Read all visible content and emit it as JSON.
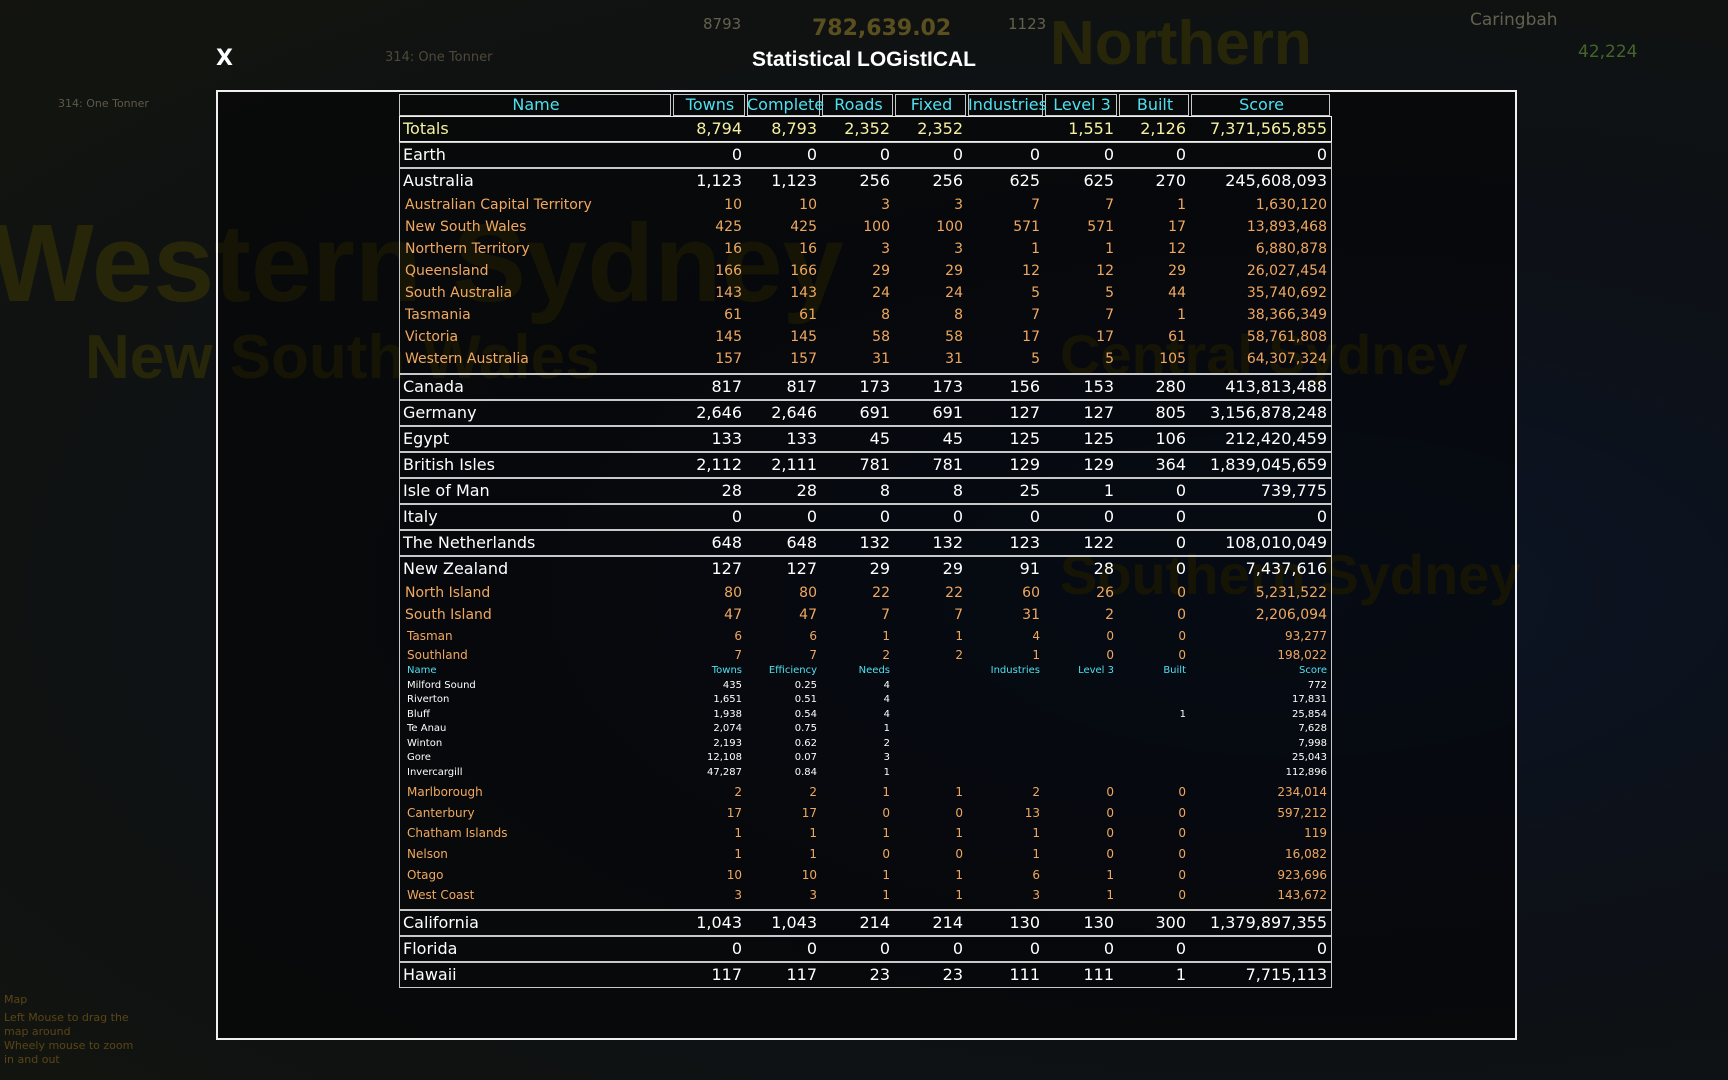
{
  "dialog": {
    "close": "X",
    "title": "Statistical LOGistICAL"
  },
  "background": {
    "map_labels": [
      "Western Sydney",
      "New South Wales",
      "Northern",
      "Central Sydney",
      "Southern Sydney"
    ],
    "hud": [
      "8793",
      "782,639.02",
      "1123",
      "Caringbah",
      "42,224",
      "314: One Tonner"
    ],
    "help": [
      "Map",
      "Left Mouse to drag the map around",
      "Wheely mouse to zoom in and out"
    ]
  },
  "table": {
    "header": [
      "Name",
      "Towns",
      "Complete",
      "Roads",
      "Fixed",
      "Industries",
      "Level 3",
      "Built",
      "Score"
    ],
    "totals": [
      "Totals",
      "8,794",
      "8,793",
      "2,352",
      "2,352",
      null,
      "1,551",
      "2,126",
      "7,371,565,855"
    ],
    "groups": [
      {
        "row": [
          "Earth",
          "0",
          "0",
          "0",
          "0",
          "0",
          "0",
          "0",
          "0"
        ]
      },
      {
        "row": [
          "Australia",
          "1,123",
          "1,123",
          "256",
          "256",
          "625",
          "625",
          "270",
          "245,608,093"
        ],
        "subrows": [
          [
            "Australian Capital Territory",
            "10",
            "10",
            "3",
            "3",
            "7",
            "7",
            "1",
            "1,630,120"
          ],
          [
            "New South Wales",
            "425",
            "425",
            "100",
            "100",
            "571",
            "571",
            "17",
            "13,893,468"
          ],
          [
            "Northern Territory",
            "16",
            "16",
            "3",
            "3",
            "1",
            "1",
            "12",
            "6,880,878"
          ],
          [
            "Queensland",
            "166",
            "166",
            "29",
            "29",
            "12",
            "12",
            "29",
            "26,027,454"
          ],
          [
            "South Australia",
            "143",
            "143",
            "24",
            "24",
            "5",
            "5",
            "44",
            "35,740,692"
          ],
          [
            "Tasmania",
            "61",
            "61",
            "8",
            "8",
            "7",
            "7",
            "1",
            "38,366,349"
          ],
          [
            "Victoria",
            "145",
            "145",
            "58",
            "58",
            "17",
            "17",
            "61",
            "58,761,808"
          ],
          [
            "Western Australia",
            "157",
            "157",
            "31",
            "31",
            "5",
            "5",
            "105",
            "64,307,324"
          ]
        ]
      },
      {
        "row": [
          "Canada",
          "817",
          "817",
          "173",
          "173",
          "156",
          "153",
          "280",
          "413,813,488"
        ]
      },
      {
        "row": [
          "Germany",
          "2,646",
          "2,646",
          "691",
          "691",
          "127",
          "127",
          "805",
          "3,156,878,248"
        ]
      },
      {
        "row": [
          "Egypt",
          "133",
          "133",
          "45",
          "45",
          "125",
          "125",
          "106",
          "212,420,459"
        ]
      },
      {
        "row": [
          "British Isles",
          "2,112",
          "2,111",
          "781",
          "781",
          "129",
          "129",
          "364",
          "1,839,045,659"
        ]
      },
      {
        "row": [
          "Isle of Man",
          "28",
          "28",
          "8",
          "8",
          "25",
          "1",
          "0",
          "739,775"
        ]
      },
      {
        "row": [
          "Italy",
          "0",
          "0",
          "0",
          "0",
          "0",
          "0",
          "0",
          "0"
        ]
      },
      {
        "row": [
          "The Netherlands",
          "648",
          "648",
          "132",
          "132",
          "123",
          "122",
          "0",
          "108,010,049"
        ]
      },
      {
        "row": [
          "New Zealand",
          "127",
          "127",
          "29",
          "29",
          "91",
          "28",
          "0",
          "7,437,616"
        ],
        "subrows": [
          [
            "North Island",
            "80",
            "80",
            "22",
            "22",
            "60",
            "26",
            "0",
            "5,231,522"
          ],
          [
            "South Island",
            "47",
            "47",
            "7",
            "7",
            "31",
            "2",
            "0",
            "2,206,094"
          ]
        ],
        "districts": [
          [
            "Tasman",
            "6",
            "6",
            "1",
            "1",
            "4",
            "0",
            "0",
            "93,277"
          ],
          [
            "Southland",
            "7",
            "7",
            "2",
            "2",
            "1",
            "0",
            "0",
            "198,022"
          ]
        ],
        "towns": {
          "header": [
            "Name",
            "Towns",
            "Efficiency",
            "Needs",
            null,
            "Industries",
            "Level 3",
            "Built",
            "Score"
          ],
          "rows": [
            [
              "Milford Sound",
              "435",
              "0.25",
              "4",
              null,
              null,
              null,
              null,
              "772"
            ],
            [
              "Riverton",
              "1,651",
              "0.51",
              "4",
              null,
              null,
              null,
              null,
              "17,831"
            ],
            [
              "Bluff",
              "1,938",
              "0.54",
              "4",
              null,
              null,
              null,
              "1",
              "25,854"
            ],
            [
              "Te Anau",
              "2,074",
              "0.75",
              "1",
              null,
              null,
              null,
              null,
              "7,628"
            ],
            [
              "Winton",
              "2,193",
              "0.62",
              "2",
              null,
              null,
              null,
              null,
              "7,998"
            ],
            [
              "Gore",
              "12,108",
              "0.07",
              "3",
              null,
              null,
              null,
              null,
              "25,043"
            ],
            [
              "Invercargill",
              "47,287",
              "0.84",
              "1",
              null,
              null,
              null,
              null,
              "112,896"
            ]
          ]
        },
        "more_districts": [
          [
            "Marlborough",
            "2",
            "2",
            "1",
            "1",
            "2",
            "0",
            "0",
            "234,014"
          ],
          [
            "Canterbury",
            "17",
            "17",
            "0",
            "0",
            "13",
            "0",
            "0",
            "597,212"
          ],
          [
            "Chatham Islands",
            "1",
            "1",
            "1",
            "1",
            "1",
            "0",
            "0",
            "119"
          ],
          [
            "Nelson",
            "1",
            "1",
            "0",
            "0",
            "1",
            "0",
            "0",
            "16,082"
          ],
          [
            "Otago",
            "10",
            "10",
            "1",
            "1",
            "6",
            "1",
            "0",
            "923,696"
          ],
          [
            "West Coast",
            "3",
            "3",
            "1",
            "1",
            "3",
            "1",
            "0",
            "143,672"
          ]
        ]
      },
      {
        "row": [
          "California",
          "1,043",
          "1,043",
          "214",
          "214",
          "130",
          "130",
          "300",
          "1,379,897,355"
        ]
      },
      {
        "row": [
          "Florida",
          "0",
          "0",
          "0",
          "0",
          "0",
          "0",
          "0",
          "0"
        ]
      },
      {
        "row": [
          "Hawaii",
          "117",
          "117",
          "23",
          "23",
          "111",
          "111",
          "1",
          "7,715,113"
        ]
      }
    ]
  }
}
